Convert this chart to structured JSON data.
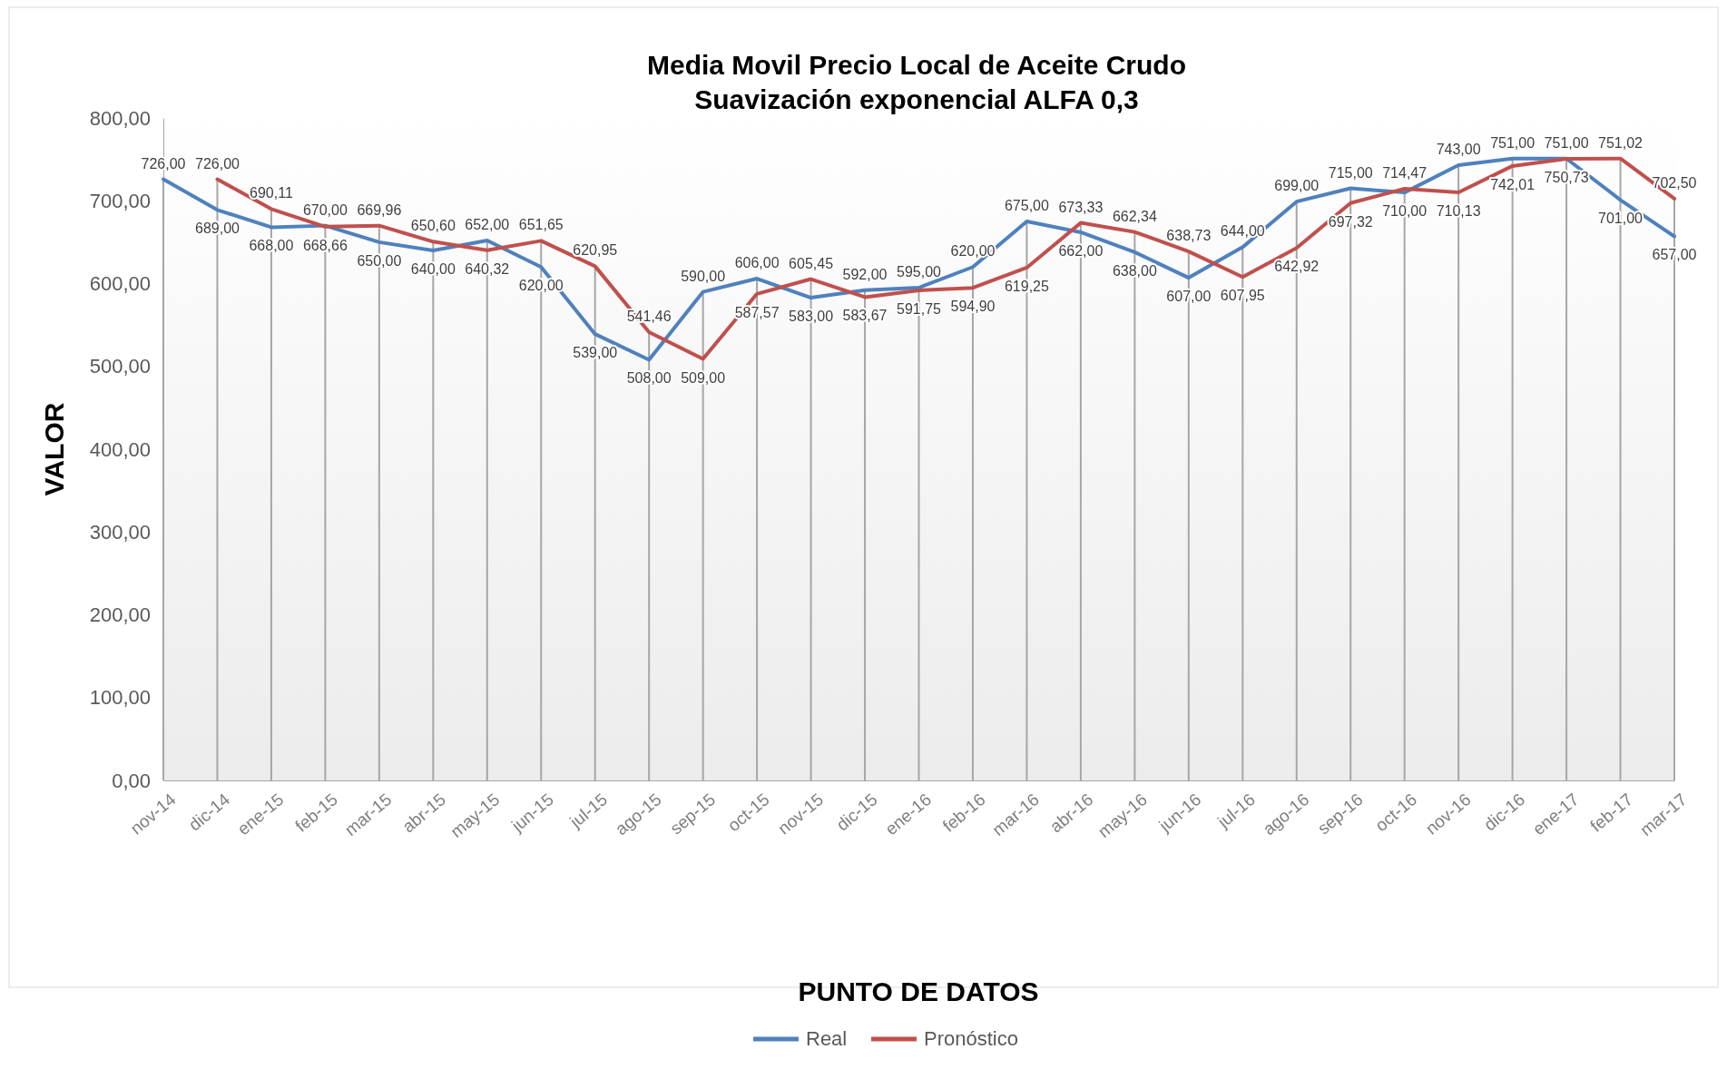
{
  "chart_data": {
    "type": "line",
    "title": "Media Movil Precio Local de Aceite Crudo",
    "subtitle": "Suavización exponencial ALFA 0,3",
    "xlabel": "PUNTO DE DATOS",
    "ylabel": "VALOR",
    "categories": [
      "nov-14",
      "dic-14",
      "ene-15",
      "feb-15",
      "mar-15",
      "abr-15",
      "may-15",
      "jun-15",
      "jul-15",
      "ago-15",
      "sep-15",
      "oct-15",
      "nov-15",
      "dic-15",
      "ene-16",
      "feb-16",
      "mar-16",
      "abr-16",
      "may-16",
      "jun-16",
      "jul-16",
      "ago-16",
      "sep-16",
      "oct-16",
      "nov-16",
      "dic-16",
      "ene-17",
      "feb-17",
      "mar-17"
    ],
    "series": [
      {
        "name": "Real",
        "color": "#4f81bd",
        "values": [
          726,
          689,
          668,
          670,
          650,
          640,
          652,
          620,
          539,
          508,
          590,
          606,
          583,
          592,
          595,
          620,
          675,
          662,
          638,
          607,
          644,
          699,
          715,
          710,
          743,
          751,
          751,
          701,
          657
        ],
        "value_labels": [
          "726,00",
          "689,00",
          "668,00",
          "670,00",
          "650,00",
          "640,00",
          "652,00",
          "620,00",
          "539,00",
          "508,00",
          "590,00",
          "606,00",
          "583,00",
          "592,00",
          "595,00",
          "620,00",
          "675,00",
          "662,00",
          "638,00",
          "607,00",
          "644,00",
          "699,00",
          "715,00",
          "710,00",
          "743,00",
          "751,00",
          "751,00",
          "701,00",
          "657,00"
        ]
      },
      {
        "name": "Pronóstico",
        "color": "#c0504d",
        "values": [
          null,
          726,
          690.11,
          668.66,
          669.96,
          650.6,
          640.32,
          651.65,
          620.95,
          541.46,
          509,
          587.57,
          605.45,
          583.67,
          591.75,
          594.9,
          619.25,
          673.33,
          662.34,
          638.73,
          607.95,
          642.92,
          697.32,
          714.47,
          710.13,
          742.01,
          750.73,
          751.02,
          702.5
        ],
        "value_labels": [
          null,
          "726,00",
          "690,11",
          "668,66",
          "669,96",
          "650,60",
          "640,32",
          "651,65",
          "620,95",
          "541,46",
          "509,00",
          "587,57",
          "605,45",
          "583,67",
          "591,75",
          "594,90",
          "619,25",
          "673,33",
          "662,34",
          "638,73",
          "607,95",
          "642,92",
          "697,32",
          "714,47",
          "710,13",
          "742,01",
          "750,73",
          "751,02",
          "702,50"
        ]
      }
    ],
    "ylim": [
      0,
      800
    ],
    "yticks": [
      {
        "value": 0,
        "label": "0,00"
      },
      {
        "value": 100,
        "label": "100,00"
      },
      {
        "value": 200,
        "label": "200,00"
      },
      {
        "value": 300,
        "label": "300,00"
      },
      {
        "value": 400,
        "label": "400,00"
      },
      {
        "value": 500,
        "label": "500,00"
      },
      {
        "value": 600,
        "label": "600,00"
      },
      {
        "value": 700,
        "label": "700,00"
      },
      {
        "value": 800,
        "label": "800,00"
      }
    ],
    "grid": "x",
    "legend": "bottom",
    "marker": "none",
    "line_style": "solid"
  }
}
